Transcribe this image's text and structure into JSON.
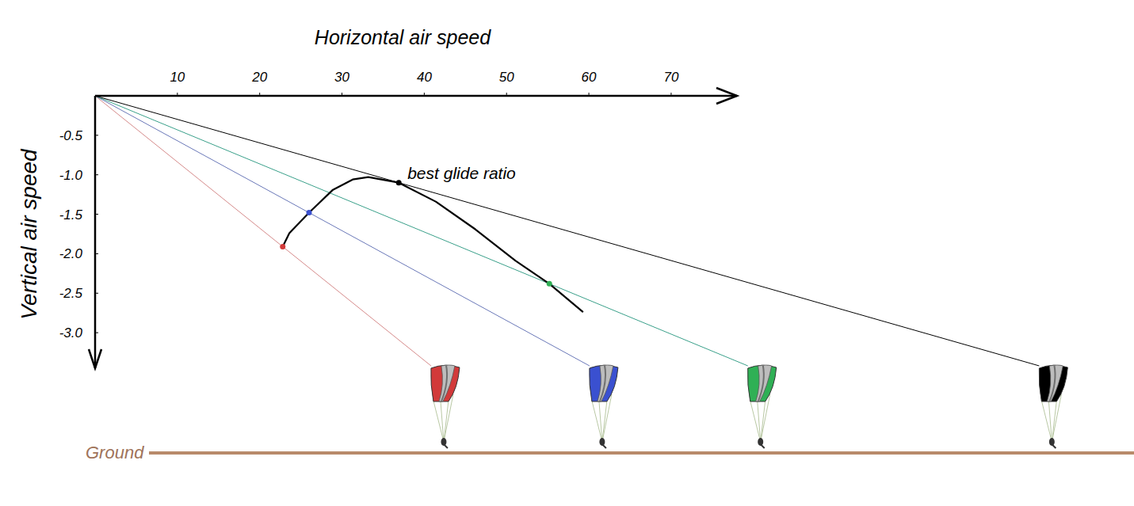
{
  "chart_data": {
    "type": "line",
    "x_label": "Horizontal air speed",
    "y_label": "Vertical air speed",
    "xlim": [
      0,
      78
    ],
    "ylim": [
      0,
      -3.45
    ],
    "xticks": [
      10,
      20,
      30,
      40,
      50,
      60,
      70
    ],
    "yticks": [
      -0.5,
      {
        "value": -1.0,
        "label": "-1.0"
      },
      -1.5,
      {
        "value": -2.0,
        "label": "-2.0"
      },
      -2.5,
      {
        "value": -3.0,
        "label": "-3.0"
      }
    ],
    "grid": false,
    "series": [
      {
        "color": "#000000",
        "x": [
          22.8,
          23.6,
          26.0,
          28.9,
          31.3,
          33.2,
          36.9,
          41.4,
          46.2,
          51.1,
          55.2,
          59.3
        ],
        "values": [
          -1.91,
          -1.74,
          -1.48,
          -1.19,
          -1.06,
          -1.03,
          -1.1,
          -1.34,
          -1.69,
          -2.09,
          -2.38,
          -2.74
        ]
      }
    ],
    "points": {
      "x": [
        22.8,
        26.0,
        55.2,
        36.9
      ],
      "values": [
        -1.91,
        -1.48,
        -2.38,
        -1.1
      ],
      "colors": [
        "#d23a3a",
        "#3a50d0",
        "#2fb055",
        "#000000"
      ]
    },
    "annotations": [
      {
        "text": "best glide ratio",
        "x": 36.9,
        "y": -1.1
      }
    ],
    "ground_label": "Ground"
  }
}
